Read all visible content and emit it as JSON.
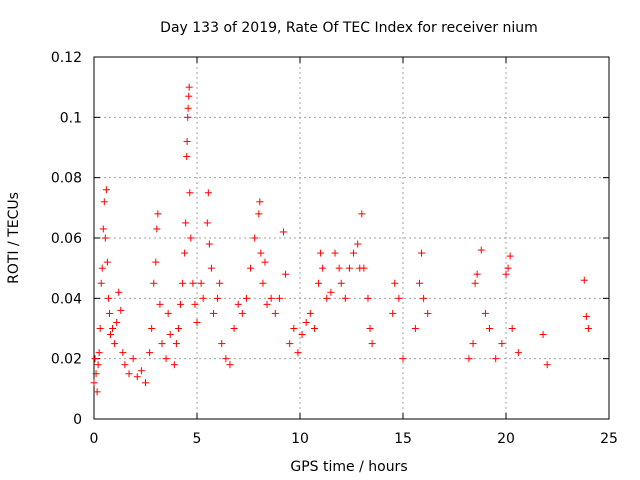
{
  "chart_data": {
    "type": "scatter",
    "title": "Day 133 of 2019, Rate Of TEC Index for receiver nium",
    "xlabel": "GPS time / hours",
    "ylabel": "ROTI / TECUs",
    "xlim": [
      0,
      25
    ],
    "ylim": [
      0,
      0.12
    ],
    "x_ticks": [
      0,
      5,
      10,
      15,
      20,
      25
    ],
    "y_ticks": [
      0,
      0.02,
      0.04,
      0.06,
      0.08,
      0.1,
      0.12
    ],
    "x_tick_labels": [
      "0",
      "5",
      "10",
      "15",
      "20",
      "25"
    ],
    "y_tick_labels": [
      "0",
      "0.02",
      "0.04",
      "0.06",
      "0.08",
      "0.1",
      "0.12"
    ],
    "grid": true,
    "marker": "+",
    "marker_color": "#ff0000",
    "series": [
      {
        "points": [
          [
            0.0,
            0.012
          ],
          [
            0.05,
            0.02
          ],
          [
            0.1,
            0.015
          ],
          [
            0.15,
            0.009
          ],
          [
            0.2,
            0.018
          ],
          [
            0.25,
            0.022
          ],
          [
            0.3,
            0.03
          ],
          [
            0.35,
            0.045
          ],
          [
            0.4,
            0.05
          ],
          [
            0.45,
            0.063
          ],
          [
            0.5,
            0.072
          ],
          [
            0.55,
            0.06
          ],
          [
            0.6,
            0.076
          ],
          [
            0.65,
            0.052
          ],
          [
            0.7,
            0.04
          ],
          [
            0.75,
            0.035
          ],
          [
            0.8,
            0.028
          ],
          [
            0.9,
            0.03
          ],
          [
            1.0,
            0.025
          ],
          [
            1.1,
            0.032
          ],
          [
            1.2,
            0.042
          ],
          [
            1.3,
            0.036
          ],
          [
            1.4,
            0.022
          ],
          [
            1.5,
            0.018
          ],
          [
            1.7,
            0.015
          ],
          [
            1.9,
            0.02
          ],
          [
            2.1,
            0.014
          ],
          [
            2.3,
            0.016
          ],
          [
            2.5,
            0.012
          ],
          [
            2.7,
            0.022
          ],
          [
            2.8,
            0.03
          ],
          [
            2.9,
            0.045
          ],
          [
            3.0,
            0.052
          ],
          [
            3.05,
            0.063
          ],
          [
            3.1,
            0.068
          ],
          [
            3.2,
            0.038
          ],
          [
            3.3,
            0.025
          ],
          [
            3.5,
            0.02
          ],
          [
            3.6,
            0.035
          ],
          [
            3.7,
            0.028
          ],
          [
            3.9,
            0.018
          ],
          [
            4.0,
            0.025
          ],
          [
            4.1,
            0.03
          ],
          [
            4.2,
            0.038
          ],
          [
            4.3,
            0.045
          ],
          [
            4.4,
            0.055
          ],
          [
            4.45,
            0.065
          ],
          [
            4.5,
            0.087
          ],
          [
            4.52,
            0.092
          ],
          [
            4.55,
            0.1
          ],
          [
            4.57,
            0.103
          ],
          [
            4.6,
            0.107
          ],
          [
            4.62,
            0.11
          ],
          [
            4.65,
            0.075
          ],
          [
            4.7,
            0.06
          ],
          [
            4.8,
            0.045
          ],
          [
            4.9,
            0.038
          ],
          [
            5.0,
            0.032
          ],
          [
            5.2,
            0.045
          ],
          [
            5.3,
            0.04
          ],
          [
            5.5,
            0.065
          ],
          [
            5.55,
            0.075
          ],
          [
            5.6,
            0.058
          ],
          [
            5.7,
            0.05
          ],
          [
            5.8,
            0.035
          ],
          [
            6.0,
            0.04
          ],
          [
            6.1,
            0.045
          ],
          [
            6.2,
            0.025
          ],
          [
            6.4,
            0.02
          ],
          [
            6.6,
            0.018
          ],
          [
            6.8,
            0.03
          ],
          [
            7.0,
            0.038
          ],
          [
            7.2,
            0.035
          ],
          [
            7.4,
            0.04
          ],
          [
            7.6,
            0.05
          ],
          [
            7.8,
            0.06
          ],
          [
            8.0,
            0.068
          ],
          [
            8.05,
            0.072
          ],
          [
            8.1,
            0.055
          ],
          [
            8.2,
            0.045
          ],
          [
            8.3,
            0.052
          ],
          [
            8.4,
            0.038
          ],
          [
            8.6,
            0.04
          ],
          [
            8.8,
            0.035
          ],
          [
            9.0,
            0.04
          ],
          [
            9.2,
            0.062
          ],
          [
            9.3,
            0.048
          ],
          [
            9.5,
            0.025
          ],
          [
            9.7,
            0.03
          ],
          [
            9.9,
            0.022
          ],
          [
            10.1,
            0.028
          ],
          [
            10.3,
            0.032
          ],
          [
            10.5,
            0.035
          ],
          [
            10.7,
            0.03
          ],
          [
            10.9,
            0.045
          ],
          [
            11.0,
            0.055
          ],
          [
            11.1,
            0.05
          ],
          [
            11.3,
            0.04
          ],
          [
            11.5,
            0.042
          ],
          [
            11.7,
            0.055
          ],
          [
            11.9,
            0.05
          ],
          [
            12.0,
            0.045
          ],
          [
            12.2,
            0.04
          ],
          [
            12.4,
            0.05
          ],
          [
            12.6,
            0.055
          ],
          [
            12.8,
            0.058
          ],
          [
            12.9,
            0.05
          ],
          [
            13.0,
            0.068
          ],
          [
            13.1,
            0.05
          ],
          [
            13.3,
            0.04
          ],
          [
            13.4,
            0.03
          ],
          [
            13.5,
            0.025
          ],
          [
            14.5,
            0.035
          ],
          [
            14.6,
            0.045
          ],
          [
            14.8,
            0.04
          ],
          [
            15.0,
            0.02
          ],
          [
            15.6,
            0.03
          ],
          [
            15.8,
            0.045
          ],
          [
            15.9,
            0.055
          ],
          [
            16.0,
            0.04
          ],
          [
            16.2,
            0.035
          ],
          [
            18.2,
            0.02
          ],
          [
            18.4,
            0.025
          ],
          [
            18.5,
            0.045
          ],
          [
            18.6,
            0.048
          ],
          [
            18.8,
            0.056
          ],
          [
            19.0,
            0.035
          ],
          [
            19.2,
            0.03
          ],
          [
            19.5,
            0.02
          ],
          [
            19.8,
            0.025
          ],
          [
            20.0,
            0.048
          ],
          [
            20.1,
            0.05
          ],
          [
            20.2,
            0.054
          ],
          [
            20.3,
            0.03
          ],
          [
            20.6,
            0.022
          ],
          [
            21.8,
            0.028
          ],
          [
            22.0,
            0.018
          ],
          [
            23.8,
            0.046
          ],
          [
            23.9,
            0.034
          ],
          [
            24.0,
            0.03
          ]
        ]
      }
    ]
  }
}
